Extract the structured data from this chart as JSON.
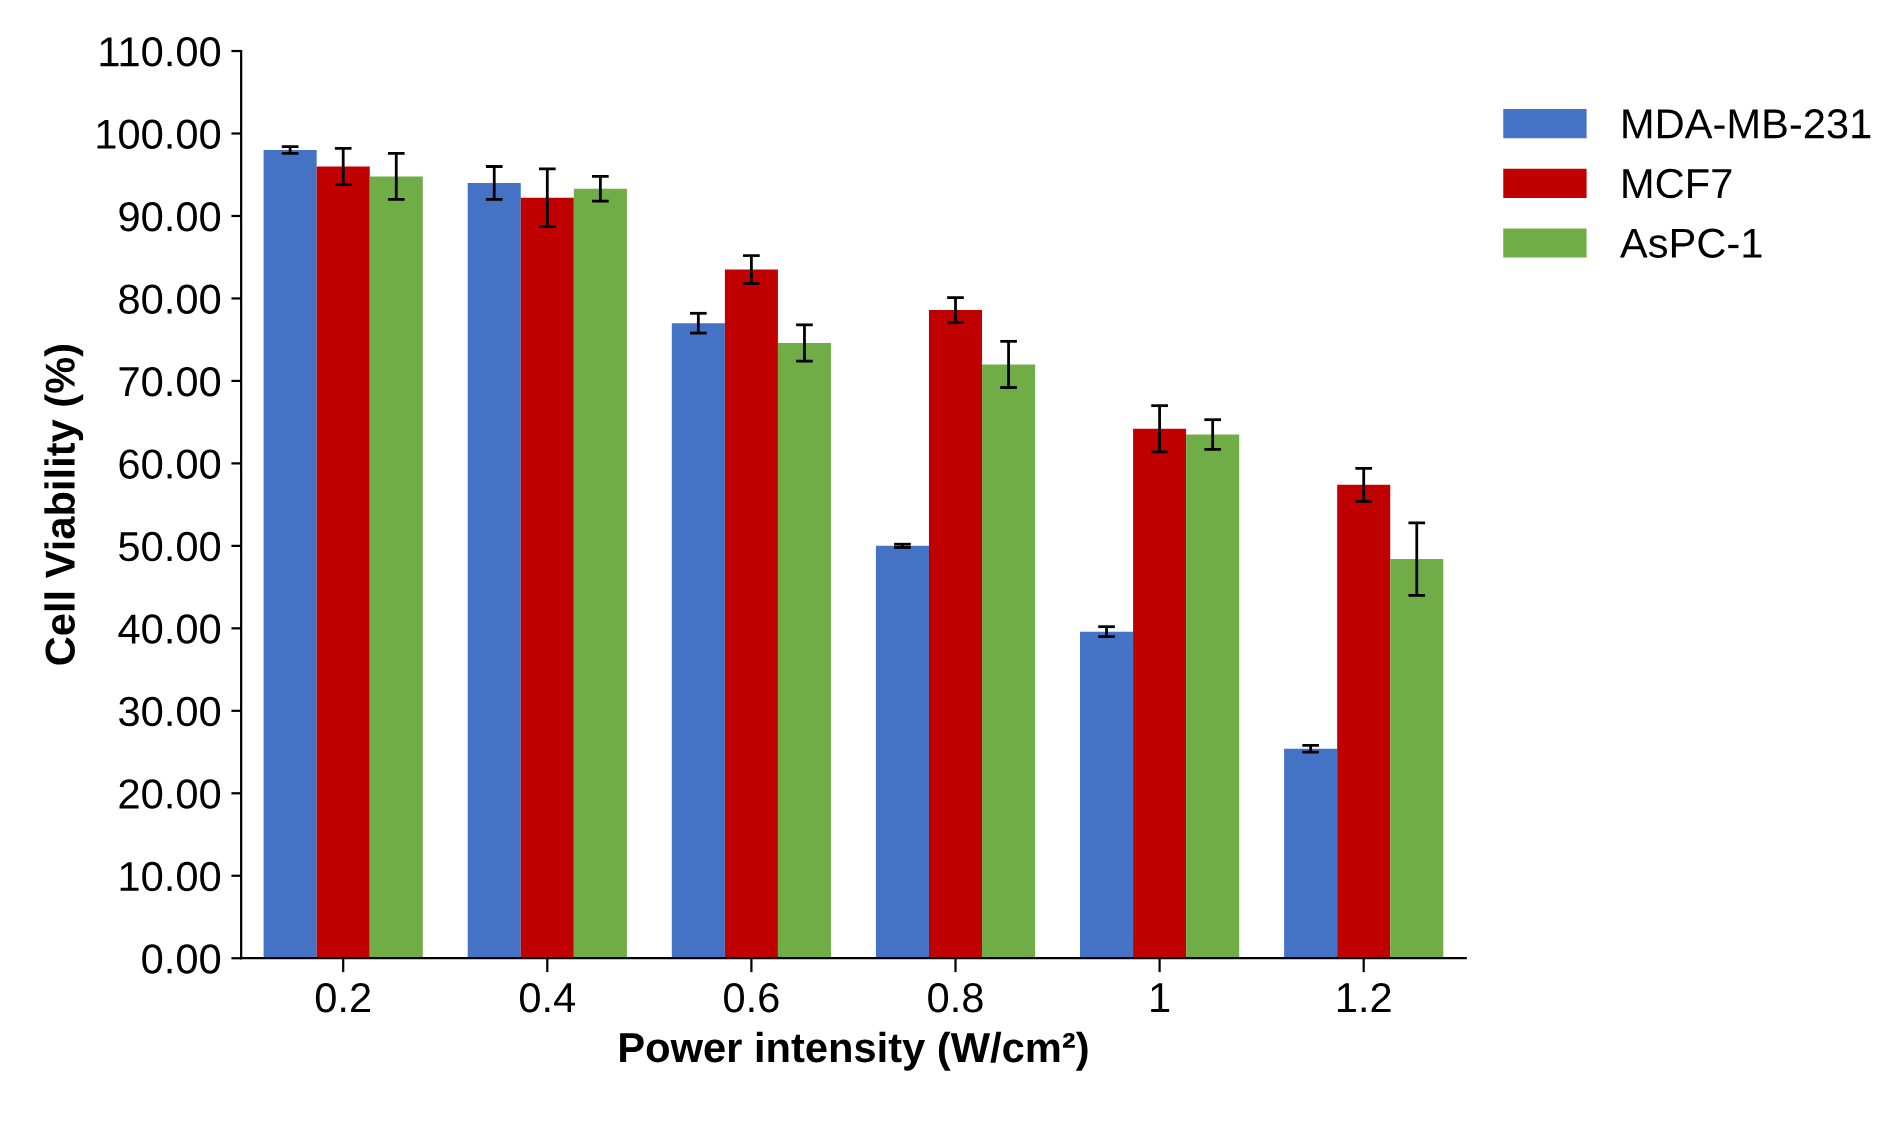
{
  "chart_data": {
    "type": "bar",
    "xlabel": "Power intensity (W/cm²)",
    "ylabel": "Cell Viability (%)",
    "categories": [
      "0.2",
      "0.4",
      "0.6",
      "0.8",
      "1",
      "1.2"
    ],
    "ylim": [
      0,
      110
    ],
    "yticks": [
      {
        "value": 0,
        "label": "0.00"
      },
      {
        "value": 10,
        "label": "10.00"
      },
      {
        "value": 20,
        "label": "20.00"
      },
      {
        "value": 30,
        "label": "30.00"
      },
      {
        "value": 40,
        "label": "40.00"
      },
      {
        "value": 50,
        "label": "50.00"
      },
      {
        "value": 60,
        "label": "60.00"
      },
      {
        "value": 70,
        "label": "70.00"
      },
      {
        "value": 80,
        "label": "80.00"
      },
      {
        "value": 90,
        "label": "90.00"
      },
      {
        "value": 100,
        "label": "100.00"
      },
      {
        "value": 110,
        "label": "110.00"
      }
    ],
    "legend": "right",
    "grid": false,
    "series": [
      {
        "name": "MDA-MB-231",
        "color": "#4472c4",
        "values": [
          98,
          94,
          77,
          50,
          39.6,
          25.4
        ],
        "errors": [
          0.4,
          2,
          1.2,
          0.2,
          0.6,
          0.4
        ]
      },
      {
        "name": "MCF7",
        "color": "#c00000",
        "values": [
          96,
          92.2,
          83.5,
          78.6,
          64.2,
          57.4
        ],
        "errors": [
          2.2,
          3.5,
          1.7,
          1.5,
          2.8,
          2
        ]
      },
      {
        "name": "AsPC-1",
        "color": "#70ad47",
        "values": [
          94.8,
          93.3,
          74.6,
          72,
          63.5,
          48.4
        ],
        "errors": [
          2.8,
          1.5,
          2.2,
          2.8,
          1.8,
          4.4
        ]
      }
    ]
  }
}
